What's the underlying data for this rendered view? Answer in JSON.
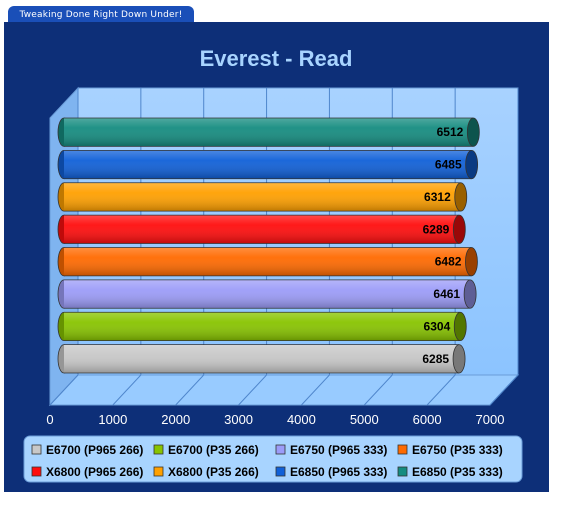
{
  "header": {
    "tagline": "Tweaking Done Right Down Under!"
  },
  "chart_data": {
    "type": "bar",
    "orientation": "horizontal",
    "title": "Everest - Read",
    "xlim": [
      0,
      7000
    ],
    "xticks": [
      0,
      1000,
      2000,
      3000,
      4000,
      5000,
      6000,
      7000
    ],
    "grid": true,
    "legend_position": "bottom",
    "series": [
      {
        "name": "E6700 (P965 266)",
        "value": 6285,
        "color": "#c8c8c8"
      },
      {
        "name": "E6700 (P35 266)",
        "value": 6304,
        "color": "#88c400"
      },
      {
        "name": "E6750 (P965 333)",
        "value": 6461,
        "color": "#9c9cf8"
      },
      {
        "name": "E6750 (P35 333)",
        "value": 6482,
        "color": "#ff6a00"
      },
      {
        "name": "X6800 (P965 266)",
        "value": 6289,
        "color": "#ff0d0d"
      },
      {
        "name": "X6800 (P35 266)",
        "value": 6312,
        "color": "#ffa000"
      },
      {
        "name": "E6850 (P965 333)",
        "value": 6485,
        "color": "#1060d8"
      },
      {
        "name": "E6850 (P35 333)",
        "value": 6512,
        "color": "#158c80"
      }
    ]
  }
}
